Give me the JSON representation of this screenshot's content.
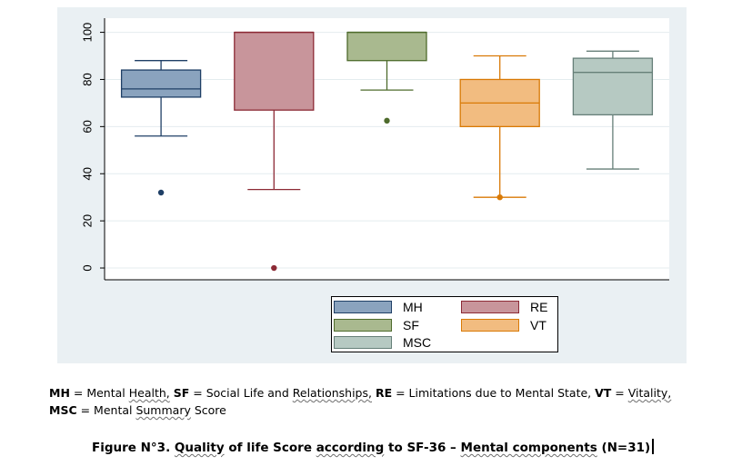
{
  "chart_data": {
    "type": "box",
    "ylim": [
      -5,
      106
    ],
    "yticks": [
      0,
      20,
      40,
      60,
      80,
      100
    ],
    "ytick_labels": [
      "0",
      "20",
      "40",
      "60",
      "80",
      "100"
    ],
    "grid": true,
    "legend_position": "bottom",
    "series": [
      {
        "name": "MH",
        "whisker_low": 56,
        "q1": 72.5,
        "median": 76,
        "q3": 84,
        "whisker_high": 88,
        "outliers": [
          32
        ],
        "fill": "#8aa3be",
        "stroke": "#1f3f66"
      },
      {
        "name": "RE",
        "whisker_low": 33.3,
        "q1": 67,
        "median": 100,
        "q3": 100,
        "whisker_high": 100,
        "outliers": [
          0
        ],
        "fill": "#c8959b",
        "stroke": "#8c2a35"
      },
      {
        "name": "SF",
        "whisker_low": 75.5,
        "q1": 88,
        "median": 100,
        "q3": 100,
        "whisker_high": 100,
        "outliers": [
          62.5
        ],
        "fill": "#a9b98f",
        "stroke": "#4e6b2c"
      },
      {
        "name": "VT",
        "whisker_low": 30,
        "q1": 60,
        "median": 70,
        "q3": 80,
        "whisker_high": 90,
        "outliers": [
          30
        ],
        "fill": "#f2bc80",
        "stroke": "#d97a06"
      },
      {
        "name": "MSC",
        "whisker_low": 42,
        "q1": 65,
        "median": 83,
        "q3": 89,
        "whisker_high": 92,
        "outliers": [],
        "fill": "#b6c9c2",
        "stroke": "#667f78"
      }
    ]
  },
  "legend": {
    "items": [
      "MH",
      "RE",
      "SF",
      "VT",
      "MSC"
    ]
  },
  "notes": {
    "mh_abbr": "MH",
    "mh_text": " = Mental ",
    "mh_word": "Health,",
    "sf_abbr": "SF",
    "sf_text": " = Social Life and ",
    "sf_word": "Relationships,",
    "re_abbr": "RE",
    "re_text": " = Limitations due to Mental State, ",
    "vt_abbr": "VT",
    "vt_text": " = ",
    "vt_word": "Vitality,",
    "msc_abbr": "MSC",
    "msc_text": " = Mental ",
    "msc_word": "Summary",
    "msc_end": " Score"
  },
  "caption": {
    "prefix": "Figure N°3. ",
    "w1": "Quality",
    "t1": " of life Score ",
    "w2": "according",
    "t2": " to SF-36 – ",
    "w3": "Mental components",
    "t3": " (N=31)"
  }
}
